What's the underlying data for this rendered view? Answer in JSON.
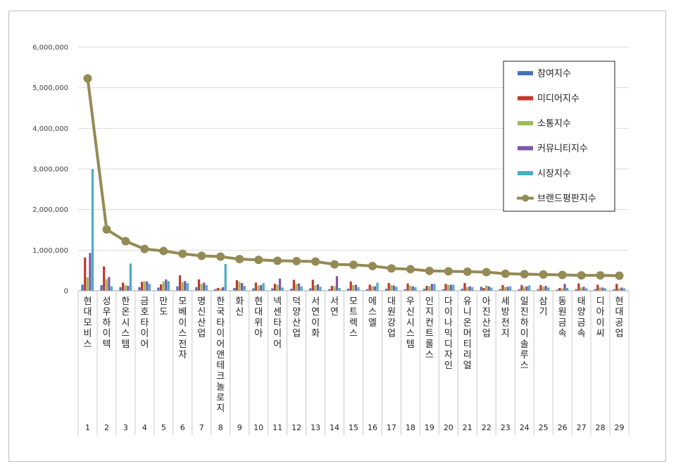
{
  "chart_data": {
    "type": "bar",
    "y_ticks": [
      "0",
      "1,000,000",
      "2,000,000",
      "3,000,000",
      "4,000,000",
      "5,000,000",
      "6,000,000"
    ],
    "ylim": [
      0,
      6000000
    ],
    "grid": true,
    "legend_position": "top-right",
    "ranks": [
      "1",
      "2",
      "3",
      "4",
      "5",
      "6",
      "7",
      "8",
      "9",
      "10",
      "11",
      "12",
      "13",
      "14",
      "15",
      "16",
      "17",
      "18",
      "19",
      "20",
      "21",
      "22",
      "23",
      "24",
      "25",
      "26",
      "27",
      "28",
      "29"
    ],
    "categories": [
      "현대모비스",
      "성우하이텍",
      "한온시스템",
      "금호타이어",
      "만도",
      "모베이스전자",
      "명신산업",
      "한국타이어앤테크놀로지",
      "화신",
      "현대위아",
      "넥센타이어",
      "덕양산업",
      "서연이화",
      "서연",
      "모트렉스",
      "에스엘",
      "대원강업",
      "우신시스템",
      "인지컨트롤스",
      "다이나믹디자인",
      "유니온머티리얼",
      "아진산업",
      "세방전지",
      "일진하이솔루스",
      "삼기",
      "동원금속",
      "태양금속",
      "디아이씨",
      "현대공업"
    ],
    "series": [
      {
        "name": "참여지수",
        "type": "bar",
        "color": "#4a71b5",
        "values": [
          150000,
          140000,
          90000,
          90000,
          80000,
          110000,
          90000,
          40000,
          70000,
          60000,
          60000,
          50000,
          60000,
          40000,
          50000,
          40000,
          50000,
          40000,
          50000,
          40000,
          50000,
          100000,
          40000,
          40000,
          40000,
          30000,
          40000,
          40000,
          40000
        ]
      },
      {
        "name": "미디어지수",
        "type": "bar",
        "color": "#c0392b",
        "values": [
          820000,
          600000,
          200000,
          220000,
          160000,
          380000,
          280000,
          70000,
          260000,
          200000,
          170000,
          270000,
          270000,
          120000,
          230000,
          150000,
          190000,
          180000,
          120000,
          170000,
          190000,
          70000,
          140000,
          140000,
          140000,
          70000,
          180000,
          150000,
          170000
        ]
      },
      {
        "name": "소통지수",
        "type": "bar",
        "color": "#9bbb59",
        "values": [
          330000,
          290000,
          140000,
          230000,
          230000,
          210000,
          170000,
          60000,
          220000,
          130000,
          150000,
          170000,
          130000,
          110000,
          140000,
          110000,
          140000,
          120000,
          110000,
          140000,
          90000,
          130000,
          90000,
          90000,
          100000,
          60000,
          80000,
          80000,
          60000
        ]
      },
      {
        "name": "커뮤니티지수",
        "type": "bar",
        "color": "#7e57a8",
        "values": [
          930000,
          340000,
          120000,
          230000,
          280000,
          240000,
          200000,
          90000,
          190000,
          140000,
          300000,
          180000,
          160000,
          360000,
          150000,
          110000,
          130000,
          110000,
          170000,
          150000,
          110000,
          110000,
          100000,
          110000,
          120000,
          170000,
          100000,
          80000,
          80000
        ]
      },
      {
        "name": "시장지수",
        "type": "bar",
        "color": "#4bacc6",
        "values": [
          3000000,
          110000,
          670000,
          170000,
          240000,
          190000,
          140000,
          660000,
          120000,
          190000,
          80000,
          110000,
          100000,
          70000,
          90000,
          200000,
          100000,
          90000,
          170000,
          150000,
          90000,
          80000,
          110000,
          130000,
          80000,
          70000,
          60000,
          60000,
          60000
        ]
      },
      {
        "name": "브랜드평판지수",
        "type": "line",
        "color": "#948a54",
        "values": [
          5230000,
          1510000,
          1220000,
          1030000,
          980000,
          910000,
          860000,
          840000,
          780000,
          760000,
          740000,
          730000,
          720000,
          650000,
          640000,
          610000,
          550000,
          530000,
          490000,
          480000,
          470000,
          460000,
          420000,
          410000,
          400000,
          390000,
          380000,
          380000,
          370000
        ]
      }
    ]
  }
}
